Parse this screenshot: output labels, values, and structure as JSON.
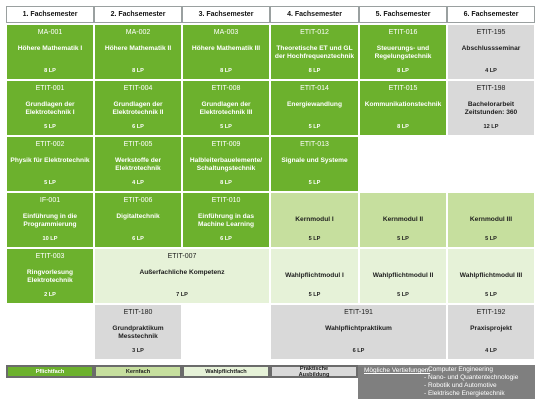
{
  "semesters": [
    "1. Fachsemester",
    "2. Fachsemester",
    "3. Fachsemester",
    "4. Fachsemester",
    "5. Fachsemester",
    "6. Fachsemester"
  ],
  "modules": [
    {
      "id": "ma001",
      "col": 0,
      "row": 0,
      "cs": 1,
      "rs": 1,
      "type": "pflicht",
      "code": "MA-001",
      "title": "Höhere Mathematik I",
      "lp": "8 LP"
    },
    {
      "id": "ma002",
      "col": 1,
      "row": 0,
      "cs": 1,
      "rs": 1,
      "type": "pflicht",
      "code": "MA-002",
      "title": "Höhere Mathematik II",
      "lp": "8 LP"
    },
    {
      "id": "ma003",
      "col": 2,
      "row": 0,
      "cs": 1,
      "rs": 1,
      "type": "pflicht",
      "code": "MA-003",
      "title": "Höhere Mathematik III",
      "lp": "8 LP"
    },
    {
      "id": "etit012",
      "col": 3,
      "row": 0,
      "cs": 1,
      "rs": 1,
      "type": "pflicht",
      "code": "ETIT-012",
      "title": "Theoretische ET und GL der Hochfrequenztechnik",
      "lp": "8 LP"
    },
    {
      "id": "etit016",
      "col": 4,
      "row": 0,
      "cs": 1,
      "rs": 1,
      "type": "pflicht",
      "code": "ETIT-016",
      "title": "Steuerungs- und Regelungstechnik",
      "lp": "8 LP"
    },
    {
      "id": "etit195",
      "col": 5,
      "row": 0,
      "cs": 1,
      "rs": 1,
      "type": "prak",
      "code": "ETIT-195",
      "title": "Abschlussseminar",
      "lp": "4 LP"
    },
    {
      "id": "etit001",
      "col": 0,
      "row": 1,
      "cs": 1,
      "rs": 1,
      "type": "pflicht",
      "code": "ETIT-001",
      "title": "Grundlagen der Elektrotechnik I",
      "lp": "5 LP"
    },
    {
      "id": "etit004",
      "col": 1,
      "row": 1,
      "cs": 1,
      "rs": 1,
      "type": "pflicht",
      "code": "ETIT-004",
      "title": "Grundlagen der Elektrotechnik II",
      "lp": "6 LP"
    },
    {
      "id": "etit008",
      "col": 2,
      "row": 1,
      "cs": 1,
      "rs": 1,
      "type": "pflicht",
      "code": "ETIT-008",
      "title": "Grundlagen der Elektrotechnik III",
      "lp": "5 LP"
    },
    {
      "id": "etit014",
      "col": 3,
      "row": 1,
      "cs": 1,
      "rs": 1,
      "type": "pflicht",
      "code": "ETIT-014",
      "title": "Energiewandlung",
      "lp": "5 LP"
    },
    {
      "id": "etit015",
      "col": 4,
      "row": 1,
      "cs": 1,
      "rs": 1,
      "type": "pflicht",
      "code": "ETIT-015",
      "title": "Kommunikationstechnik",
      "lp": "8 LP"
    },
    {
      "id": "etit198",
      "col": 5,
      "row": 1,
      "cs": 1,
      "rs": 1,
      "type": "prak",
      "code": "ETIT-198",
      "title": "Bachelorarbeit Zeitstunden: 360",
      "lp": "12 LP"
    },
    {
      "id": "etit002",
      "col": 0,
      "row": 2,
      "cs": 1,
      "rs": 1,
      "type": "pflicht",
      "code": "ETIT-002",
      "title": "Physik für Elektrotechnik",
      "lp": "5 LP"
    },
    {
      "id": "etit005",
      "col": 1,
      "row": 2,
      "cs": 1,
      "rs": 1,
      "type": "pflicht",
      "code": "ETIT-005",
      "title": "Werkstoffe der Elektrotechnik",
      "lp": "4 LP"
    },
    {
      "id": "etit009",
      "col": 2,
      "row": 2,
      "cs": 1,
      "rs": 1,
      "type": "pflicht",
      "code": "ETIT-009",
      "title": "Halbleiterbauelemente/ Schaltungstechnik",
      "lp": "8 LP"
    },
    {
      "id": "etit013",
      "col": 3,
      "row": 2,
      "cs": 1,
      "rs": 1,
      "type": "pflicht",
      "code": "ETIT-013",
      "title": "Signale und Systeme",
      "lp": "5 LP"
    },
    {
      "id": "if001",
      "col": 0,
      "row": 3,
      "cs": 1,
      "rs": 1,
      "type": "pflicht",
      "code": "IF-001",
      "title": "Einführung in die Programmierung",
      "lp": "10 LP"
    },
    {
      "id": "etit006",
      "col": 1,
      "row": 3,
      "cs": 1,
      "rs": 1,
      "type": "pflicht",
      "code": "ETIT-006",
      "title": "Digitaltechnik",
      "lp": "6 LP"
    },
    {
      "id": "etit010",
      "col": 2,
      "row": 3,
      "cs": 1,
      "rs": 1,
      "type": "pflicht",
      "code": "ETIT-010",
      "title": "Einführung in das Machine Learning",
      "lp": "6 LP"
    },
    {
      "id": "km1",
      "col": 3,
      "row": 3,
      "cs": 1,
      "rs": 1,
      "type": "kern",
      "code": "",
      "title": "Kernmodul I",
      "lp": "5 LP"
    },
    {
      "id": "km2",
      "col": 4,
      "row": 3,
      "cs": 1,
      "rs": 1,
      "type": "kern",
      "code": "",
      "title": "Kernmodul II",
      "lp": "5 LP"
    },
    {
      "id": "km3",
      "col": 5,
      "row": 3,
      "cs": 1,
      "rs": 1,
      "type": "kern",
      "code": "",
      "title": "Kernmodul III",
      "lp": "5 LP"
    },
    {
      "id": "etit003",
      "col": 0,
      "row": 4,
      "cs": 1,
      "rs": 1,
      "type": "pflicht",
      "code": "ETIT-003",
      "title": "Ringvorlesung Elektrotechnik",
      "lp": "2 LP"
    },
    {
      "id": "etit007",
      "col": 1,
      "row": 4,
      "cs": 2,
      "rs": 1,
      "type": "wahl",
      "code": "ETIT-007",
      "title": "Außerfachliche Kompetenz",
      "lp": "7 LP"
    },
    {
      "id": "wp1",
      "col": 3,
      "row": 4,
      "cs": 1,
      "rs": 1,
      "type": "wahl",
      "code": "",
      "title": "Wahlpflichtmodul I",
      "lp": "5 LP"
    },
    {
      "id": "wp2",
      "col": 4,
      "row": 4,
      "cs": 1,
      "rs": 1,
      "type": "wahl",
      "code": "",
      "title": "Wahlpflichtmodul II",
      "lp": "5 LP"
    },
    {
      "id": "wp3",
      "col": 5,
      "row": 4,
      "cs": 1,
      "rs": 1,
      "type": "wahl",
      "code": "",
      "title": "Wahlpflichtmodul III",
      "lp": "5 LP"
    },
    {
      "id": "etit180",
      "col": 1,
      "row": 5,
      "cs": 1,
      "rs": 1,
      "type": "prak",
      "code": "ETIT-180",
      "title": "Grundpraktikum Messtechnik",
      "lp": "3 LP"
    },
    {
      "id": "etit191",
      "col": 3,
      "row": 5,
      "cs": 2,
      "rs": 1,
      "type": "prak",
      "code": "ETIT-191",
      "title": "Wahlpflichtpraktikum",
      "lp": "6 LP"
    },
    {
      "id": "etit192",
      "col": 5,
      "row": 5,
      "cs": 1,
      "rs": 1,
      "type": "prak",
      "code": "ETIT-192",
      "title": "Praxisprojekt",
      "lp": "4 LP"
    }
  ],
  "legend": {
    "pflicht": "Pflichtfach",
    "kern": "Kernfach",
    "wahl": "Wahlpflichtfach",
    "prak": "Praktische Ausbildung",
    "vertiefungen_label": "Mögliche Vertiefungen:",
    "vertiefungen": [
      "- Computer Engineering",
      "- Nano- und Quantentechnologie",
      "- Robotik und Automotive",
      "- Elektrische Energietechnik"
    ]
  },
  "colors": {
    "pflicht": "#6cb12d",
    "kern": "#c6df9e",
    "wahl": "#e6f2d8",
    "prak": "#d9d9d9"
  }
}
